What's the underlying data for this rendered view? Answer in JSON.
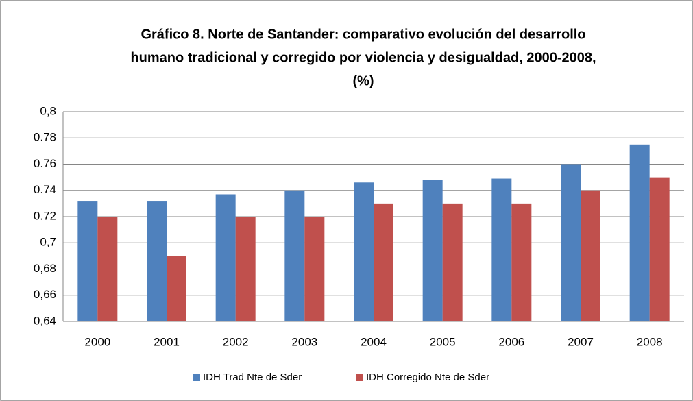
{
  "chart_data": {
    "type": "bar",
    "title": [
      "Gráfico 8. Norte de Santander: comparativo evolución del desarrollo",
      "humano tradicional y corregido por violencia y desigualdad, 2000-2008,",
      "(%)"
    ],
    "categories": [
      "2000",
      "2001",
      "2002",
      "2003",
      "2004",
      "2005",
      "2006",
      "2007",
      "2008"
    ],
    "series": [
      {
        "name": "IDH Trad Nte de Sder",
        "color": "#4f81bd",
        "values": [
          0.732,
          0.732,
          0.737,
          0.74,
          0.746,
          0.748,
          0.749,
          0.76,
          0.775
        ]
      },
      {
        "name": "IDH Corregido Nte de Sder",
        "color": "#c0504d",
        "values": [
          0.72,
          0.69,
          0.72,
          0.72,
          0.73,
          0.73,
          0.73,
          0.74,
          0.75
        ]
      }
    ],
    "ylim": [
      0.64,
      0.8
    ],
    "yticks": [
      {
        "value": 0.64,
        "label": "0,64"
      },
      {
        "value": 0.66,
        "label": "0,66"
      },
      {
        "value": 0.68,
        "label": "0,68"
      },
      {
        "value": 0.7,
        "label": "0,7"
      },
      0.72,
      0.74,
      0.76,
      0.78,
      {
        "value": 0.8,
        "label": "0,8"
      }
    ],
    "grid": true,
    "legend": "bottom"
  }
}
